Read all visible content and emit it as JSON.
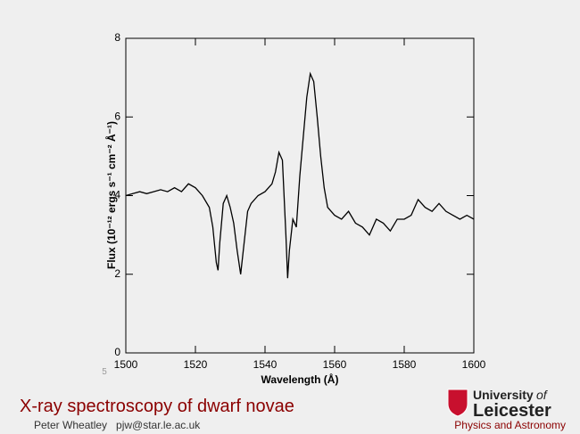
{
  "chart_data": {
    "type": "line",
    "xlabel": "Wavelength (Å)",
    "ylabel": "Flux (10⁻¹² ergs s⁻¹ cm⁻² Å⁻¹)",
    "x": [
      1500,
      1502,
      1504,
      1506,
      1508,
      1510,
      1512,
      1514,
      1516,
      1518,
      1520,
      1522,
      1524,
      1525,
      1526,
      1526.5,
      1527,
      1528,
      1529,
      1530,
      1531,
      1532,
      1533,
      1534,
      1535,
      1536,
      1538,
      1540,
      1542,
      1543,
      1544,
      1545,
      1546,
      1546.5,
      1547,
      1548,
      1549,
      1550,
      1551,
      1552,
      1553,
      1554,
      1555,
      1556,
      1557,
      1558,
      1560,
      1562,
      1564,
      1566,
      1568,
      1570,
      1572,
      1574,
      1576,
      1578,
      1580,
      1582,
      1584,
      1586,
      1588,
      1590,
      1592,
      1594,
      1596,
      1598,
      1600
    ],
    "series": [
      {
        "color": "#000000",
        "values": [
          4.0,
          4.05,
          4.1,
          4.05,
          4.1,
          4.15,
          4.1,
          4.2,
          4.1,
          4.3,
          4.2,
          4.0,
          3.7,
          3.2,
          2.3,
          2.1,
          2.8,
          3.8,
          4.0,
          3.7,
          3.3,
          2.6,
          2.0,
          2.8,
          3.6,
          3.8,
          4.0,
          4.1,
          4.3,
          4.6,
          5.1,
          4.9,
          3.0,
          1.9,
          2.6,
          3.4,
          3.2,
          4.5,
          5.5,
          6.5,
          7.1,
          6.9,
          6.0,
          5.0,
          4.2,
          3.7,
          3.5,
          3.4,
          3.6,
          3.3,
          3.2,
          3.0,
          3.4,
          3.3,
          3.1,
          3.4,
          3.4,
          3.5,
          3.9,
          3.7,
          3.6,
          3.8,
          3.6,
          3.5,
          3.4,
          3.5,
          3.4
        ]
      }
    ],
    "xlim": [
      1500,
      1600
    ],
    "xticks": [
      1500,
      1520,
      1540,
      1560,
      1580,
      1600
    ],
    "ylim": [
      0,
      8
    ],
    "yticks": [
      0,
      2,
      4,
      6,
      8
    ]
  },
  "slide": {
    "title": "X-ray spectroscopy of dwarf novae",
    "author": "Peter Wheatley   pjw@star.le.ac.uk",
    "page_number": "5",
    "logo_line1": "University",
    "logo_of": "of",
    "logo_line2": "Leicester",
    "department": "Physics and Astronomy"
  }
}
